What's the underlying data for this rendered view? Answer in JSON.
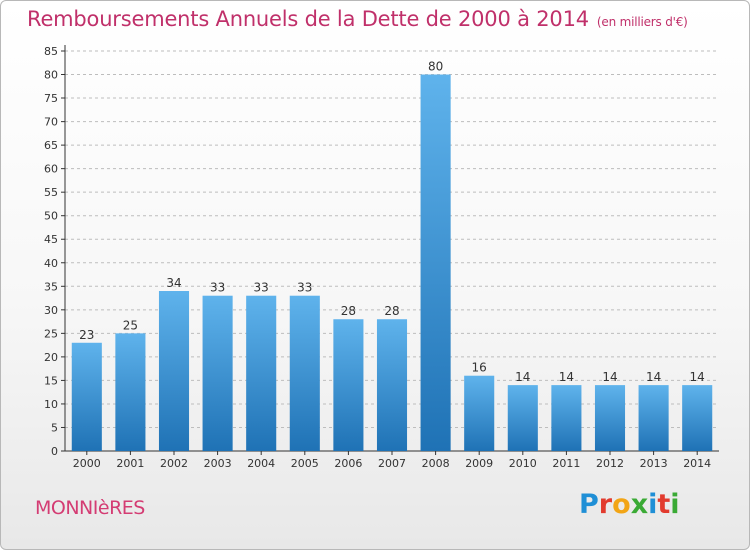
{
  "title": "Remboursements Annuels de la Dette de 2000 à 2014",
  "unit": "(en milliers d'€)",
  "commune": "MONNIèRES",
  "logo": {
    "text": "Proxiti",
    "letters": [
      {
        "char": "P",
        "color": "#1f8fd6"
      },
      {
        "char": "r",
        "color": "#e23b2e"
      },
      {
        "char": "o",
        "color": "#f2a516"
      },
      {
        "char": "x",
        "color": "#3aaa35"
      },
      {
        "char": "i",
        "color": "#1f8fd6"
      },
      {
        "char": "t",
        "color": "#e23b2e"
      },
      {
        "char": "i",
        "color": "#3aaa35"
      }
    ]
  },
  "colors": {
    "bar_top": "#5fb3ec",
    "bar_bottom": "#1f72b5",
    "grid": "#bdbdbd",
    "axis": "#333333"
  },
  "chart_data": {
    "type": "bar",
    "title": "Remboursements Annuels de la Dette de 2000 à 2014",
    "categories": [
      "2000",
      "2001",
      "2002",
      "2003",
      "2004",
      "2005",
      "2006",
      "2007",
      "2008",
      "2009",
      "2010",
      "2011",
      "2012",
      "2013",
      "2014"
    ],
    "values": [
      23,
      25,
      34,
      33,
      33,
      33,
      28,
      28,
      80,
      16,
      14,
      14,
      14,
      14,
      14
    ],
    "ylim": [
      0,
      85
    ],
    "yticks": [
      0,
      5,
      10,
      15,
      20,
      25,
      30,
      35,
      40,
      45,
      50,
      55,
      60,
      65,
      70,
      75,
      80,
      85
    ],
    "grid": true,
    "data_labels": true
  }
}
